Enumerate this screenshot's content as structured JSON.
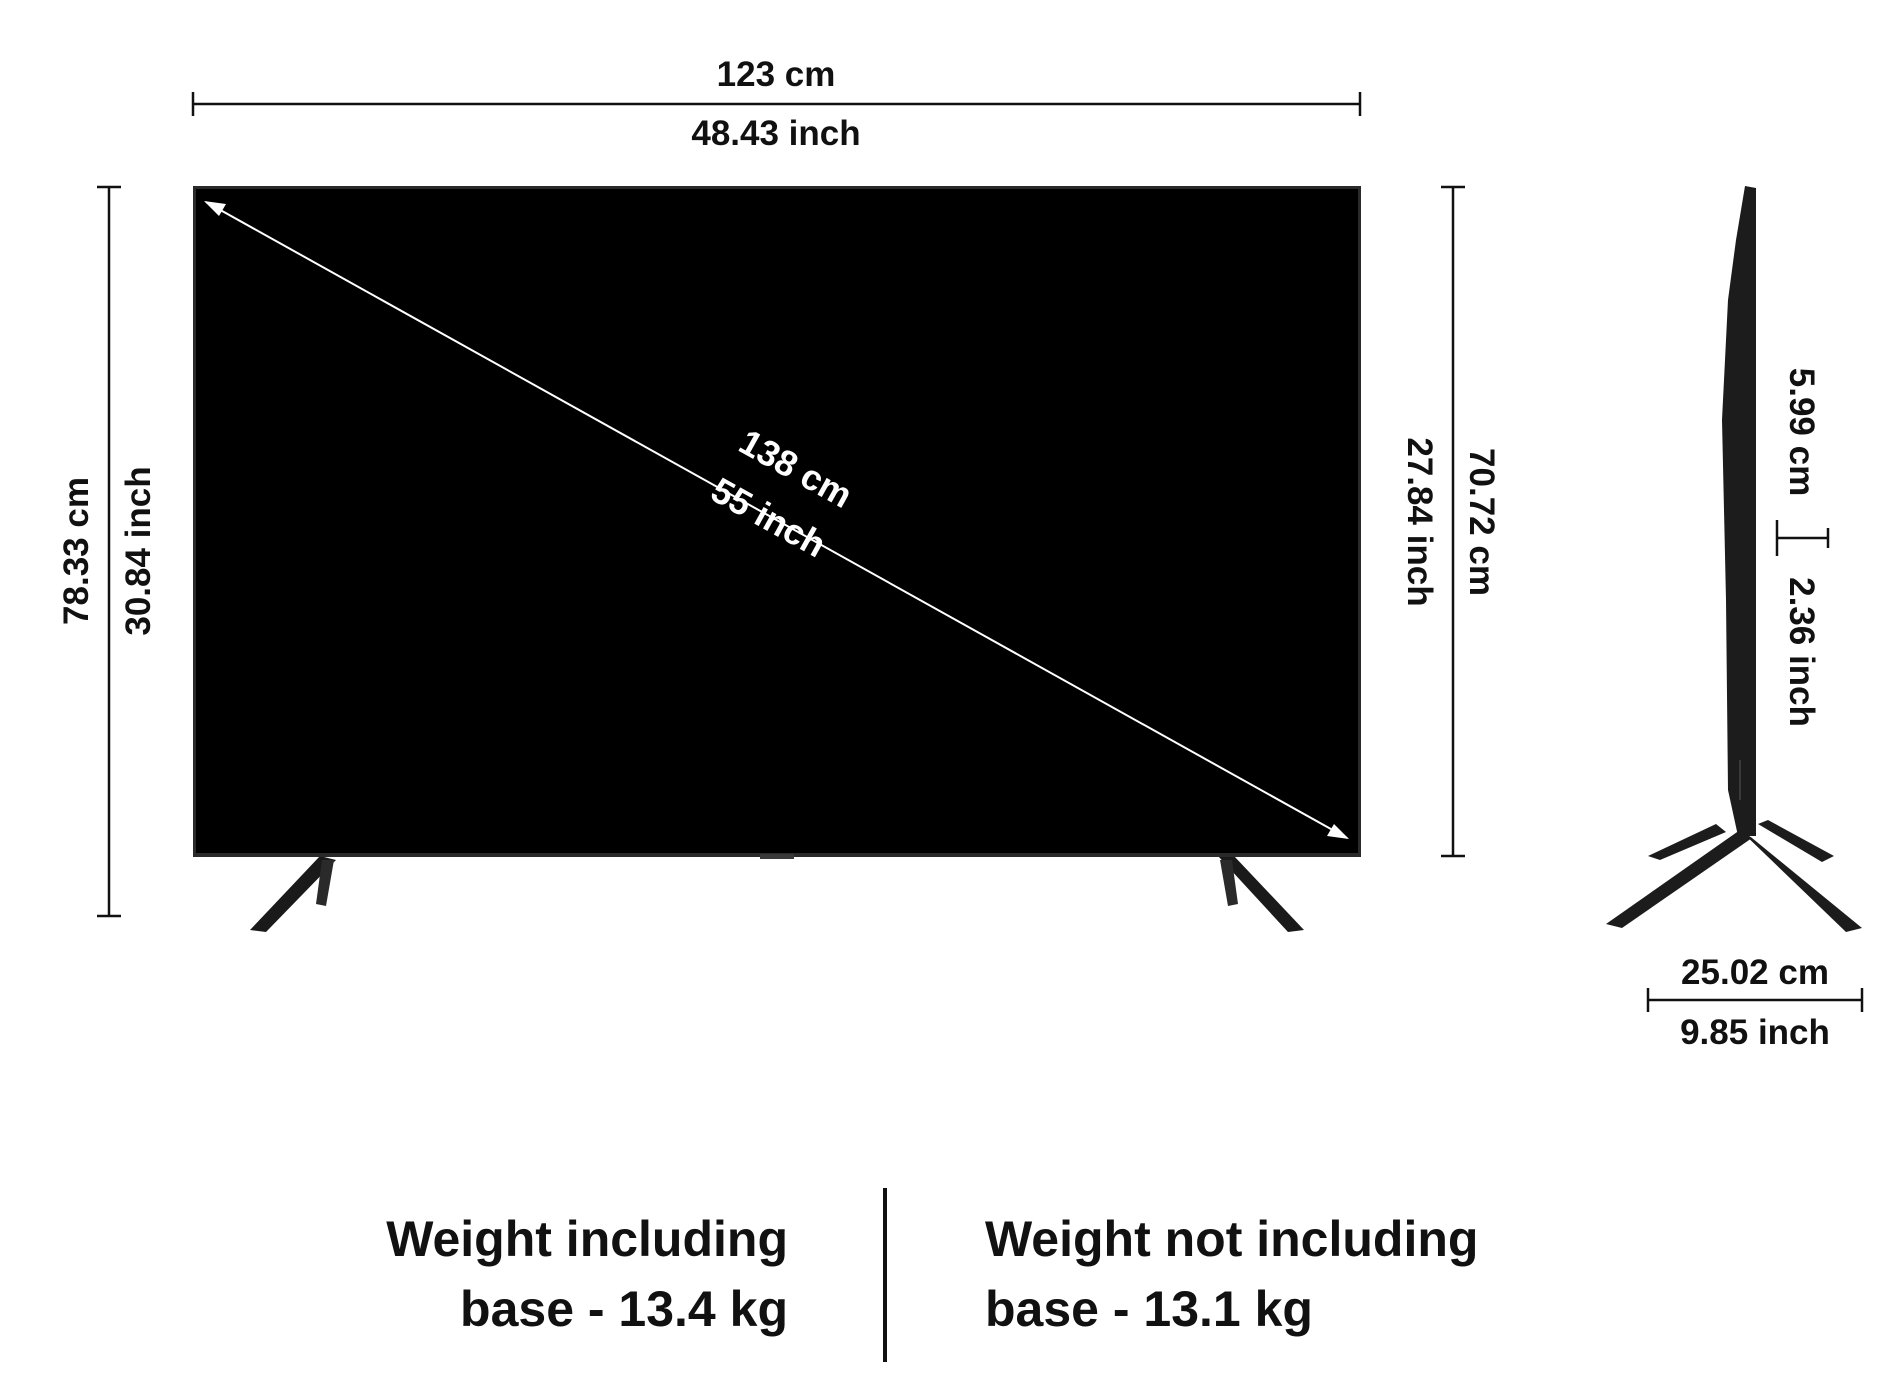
{
  "dimensions": {
    "width_cm": "123 cm",
    "width_inch": "48.43 inch",
    "total_height_cm": "78.33 cm",
    "total_height_inch": "30.84 inch",
    "screen_height_cm": "70.72 cm",
    "screen_height_inch": "27.84 inch",
    "diagonal_cm": "138 cm",
    "diagonal_inch": "55 inch",
    "depth_cm": "5.99 cm",
    "depth_inch": "2.36 inch",
    "stand_depth_cm": "25.02 cm",
    "stand_depth_inch": "9.85 inch"
  },
  "weights": {
    "with_base_line1": "Weight including",
    "with_base_line2": "base - 13.4 kg",
    "without_base_line1": "Weight not including",
    "without_base_line2": "base - 13.1 kg"
  },
  "colors": {
    "screen": "#000000",
    "frame": "#2a2a2a",
    "ink": "#111111",
    "diagonal_text": "#ffffff"
  }
}
